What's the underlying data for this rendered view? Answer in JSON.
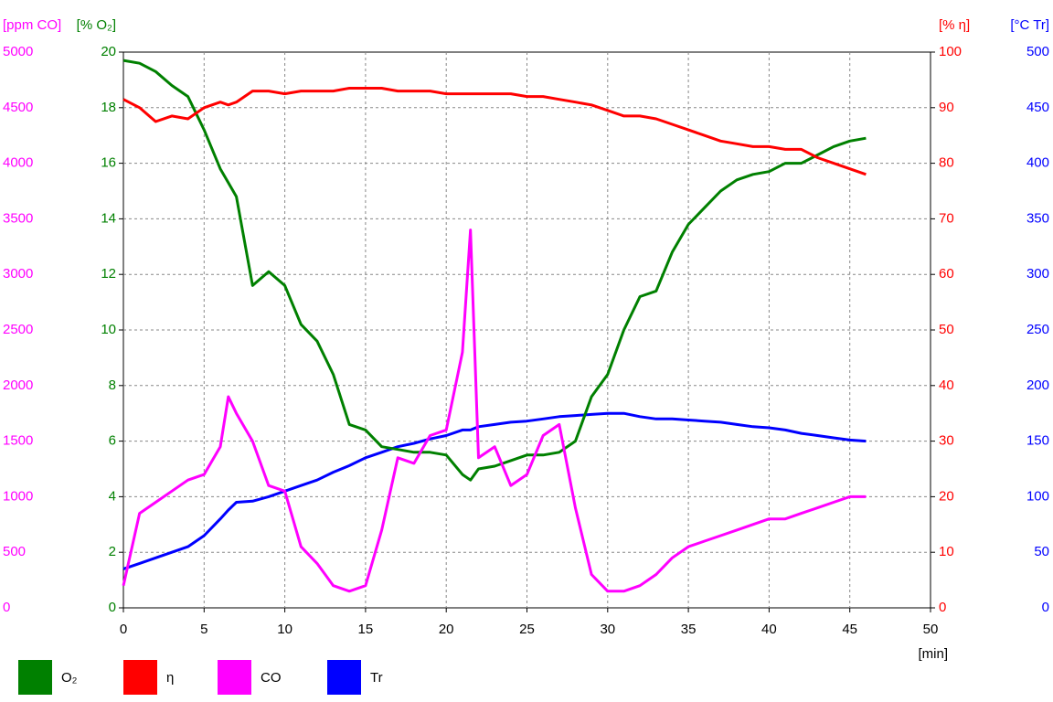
{
  "chart_data": {
    "type": "line",
    "x_label": "[min]",
    "xlim": [
      0,
      50
    ],
    "xticks": [
      0,
      5,
      10,
      15,
      20,
      25,
      30,
      35,
      40,
      45,
      50
    ],
    "grid": true,
    "axes": [
      {
        "label": "[ppm CO]",
        "color": "#ff00ff",
        "side": "left",
        "lim": [
          0,
          5000
        ],
        "ticks": [
          0,
          500,
          1000,
          1500,
          2000,
          2500,
          3000,
          3500,
          4000,
          4500,
          5000
        ]
      },
      {
        "label": "[% O₂]",
        "color": "#008000",
        "side": "left",
        "lim": [
          0,
          20
        ],
        "ticks": [
          0,
          2,
          4,
          6,
          8,
          10,
          12,
          14,
          16,
          18,
          20
        ]
      },
      {
        "label": "[% η]",
        "color": "#ff0000",
        "side": "right",
        "lim": [
          0,
          100
        ],
        "ticks": [
          0,
          10,
          20,
          30,
          40,
          50,
          60,
          70,
          80,
          90,
          100
        ]
      },
      {
        "label": "[°C Tr]",
        "color": "#0000ff",
        "side": "right",
        "lim": [
          0,
          500
        ],
        "ticks": [
          0,
          50,
          100,
          150,
          200,
          250,
          300,
          350,
          400,
          450,
          500
        ]
      }
    ],
    "x": [
      0,
      1,
      2,
      3,
      4,
      5,
      6,
      6.5,
      7,
      8,
      9,
      10,
      11,
      12,
      13,
      14,
      15,
      16,
      17,
      18,
      19,
      20,
      21,
      21.5,
      22,
      23,
      24,
      25,
      26,
      27,
      28,
      29,
      30,
      31,
      32,
      33,
      34,
      35,
      36,
      37,
      38,
      39,
      40,
      41,
      42,
      43,
      44,
      45,
      46
    ],
    "series": [
      {
        "name": "O₂",
        "color": "#008000",
        "axis": 1,
        "values": [
          19.7,
          19.6,
          19.3,
          18.8,
          18.4,
          17.2,
          15.8,
          15.3,
          14.8,
          11.6,
          12.1,
          11.6,
          10.2,
          9.6,
          8.4,
          6.6,
          6.4,
          5.8,
          5.7,
          5.6,
          5.6,
          5.5,
          4.8,
          4.6,
          5.0,
          5.1,
          5.3,
          5.5,
          5.5,
          5.6,
          6.0,
          7.6,
          8.4,
          10.0,
          11.2,
          11.4,
          12.8,
          13.8,
          14.4,
          15.0,
          15.4,
          15.6,
          15.7,
          16.0,
          16.0,
          16.3,
          16.6,
          16.8,
          16.9
        ]
      },
      {
        "name": "η",
        "color": "#ff0000",
        "axis": 2,
        "values": [
          91.5,
          90,
          87.5,
          88.5,
          88,
          90,
          91,
          90.5,
          91,
          93,
          93,
          92.5,
          93,
          93,
          93,
          93.5,
          93.5,
          93.5,
          93,
          93,
          93,
          92.5,
          92.5,
          92.5,
          92.5,
          92.5,
          92.5,
          92,
          92,
          91.5,
          91,
          90.5,
          89.5,
          88.5,
          88.5,
          88,
          87,
          86,
          85,
          84,
          83.5,
          83,
          83,
          82.5,
          82.5,
          81,
          80,
          79,
          78
        ]
      },
      {
        "name": "CO",
        "color": "#ff00ff",
        "axis": 0,
        "values": [
          200,
          850,
          950,
          1050,
          1150,
          1200,
          1450,
          1900,
          1750,
          1500,
          1100,
          1050,
          550,
          400,
          200,
          150,
          200,
          700,
          1350,
          1300,
          1550,
          1600,
          2300,
          3400,
          1350,
          1450,
          1100,
          1200,
          1550,
          1650,
          900,
          300,
          150,
          150,
          200,
          300,
          450,
          550,
          600,
          650,
          700,
          750,
          800,
          800,
          850,
          900,
          950,
          1000,
          1000
        ]
      },
      {
        "name": "Tr",
        "color": "#0000ff",
        "axis": 3,
        "values": [
          35,
          40,
          45,
          50,
          55,
          65,
          80,
          88,
          95,
          96,
          100,
          105,
          110,
          115,
          122,
          128,
          135,
          140,
          145,
          148,
          152,
          155,
          160,
          160,
          163,
          165,
          167,
          168,
          170,
          172,
          173,
          174,
          175,
          175,
          172,
          170,
          170,
          169,
          168,
          167,
          165,
          163,
          162,
          160,
          157,
          155,
          153,
          151,
          150
        ]
      }
    ]
  }
}
